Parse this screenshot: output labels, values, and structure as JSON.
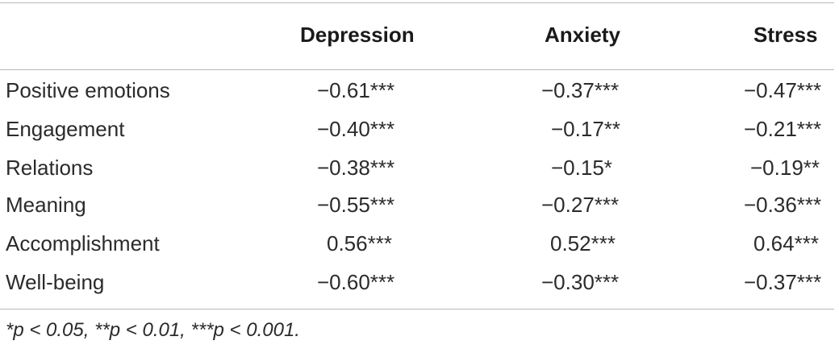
{
  "table": {
    "headers": [
      "",
      "Depression",
      "Anxiety",
      "Stress"
    ],
    "rows": [
      {
        "label": "Positive emotions",
        "values": [
          "−0.61***",
          "−0.37***",
          "−0.47***"
        ]
      },
      {
        "label": "Engagement",
        "values": [
          "−0.40***",
          "−0.17**",
          "−0.21***"
        ]
      },
      {
        "label": "Relations",
        "values": [
          "−0.38***",
          "−0.15*",
          "−0.19**"
        ]
      },
      {
        "label": "Meaning",
        "values": [
          "−0.55***",
          "−0.27***",
          "−0.36***"
        ]
      },
      {
        "label": "Accomplishment",
        "values": [
          "0.56***",
          "0.52***",
          "0.64***"
        ]
      },
      {
        "label": "Well-being",
        "values": [
          "−0.60***",
          "−0.30***",
          "−0.37***"
        ]
      }
    ],
    "footnote": "*p < 0.05, **p < 0.01, ***p < 0.001."
  }
}
